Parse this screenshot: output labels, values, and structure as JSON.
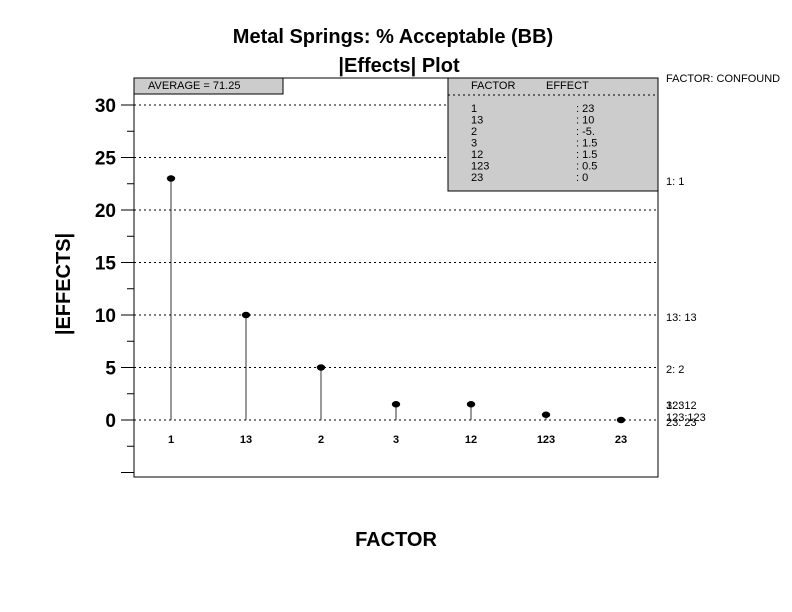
{
  "chart_data": {
    "type": "scatter",
    "title": "Metal Springs: % Acceptable (BB)",
    "subtitle": "|Effects| Plot",
    "xlabel": "FACTOR",
    "ylabel": "|EFFECTS|",
    "ylim": [
      -5.5,
      32
    ],
    "yticks": [
      "0",
      "5",
      "10",
      "15",
      "20",
      "25",
      "30"
    ],
    "categories": [
      "1",
      "13",
      "2",
      "3",
      "12",
      "123",
      "23"
    ],
    "values": [
      23,
      10,
      5,
      1.5,
      1.5,
      0.5,
      0
    ],
    "grid": "horizontal dotted",
    "average_label": "AVERAGE = 71.25",
    "legend": {
      "header_factor": "FACTOR",
      "header_effect": "EFFECT",
      "rows": [
        {
          "factor": "1",
          "effect": ": 23"
        },
        {
          "factor": "13",
          "effect": ": 10"
        },
        {
          "factor": "2",
          "effect": ": -5."
        },
        {
          "factor": "3",
          "effect": ": 1.5"
        },
        {
          "factor": "12",
          "effect": ": 1.5"
        },
        {
          "factor": "123",
          "effect": ": 0.5"
        },
        {
          "factor": "23",
          "effect": ": 0"
        }
      ]
    },
    "confound": {
      "header": "FACTOR: CONFOUND",
      "labels": [
        "1:   1",
        "13:  13",
        "2:   2",
        "3:   3",
        "12:  12",
        "123:123",
        "23:  23"
      ]
    }
  }
}
